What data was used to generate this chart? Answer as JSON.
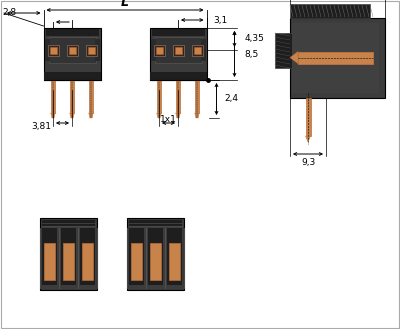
{
  "bg_color": "#ffffff",
  "dark": "#3c3c3c",
  "dark2": "#2a2a2a",
  "dark3": "#1e1e1e",
  "medium": "#4a4a4a",
  "copper": "#c8834a",
  "copper2": "#b87040",
  "black": "#000000",
  "gray_line": "#666666",
  "light_gray": "#888888",
  "fig_w": 4.0,
  "fig_h": 3.29,
  "dpi": 100
}
